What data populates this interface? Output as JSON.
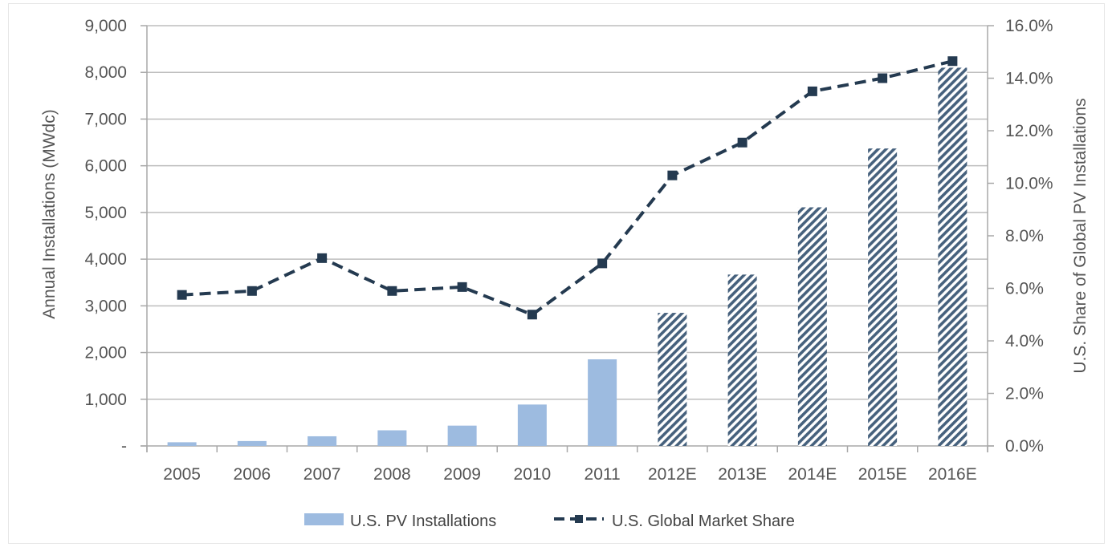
{
  "chart_data": {
    "type": "bar",
    "title": "",
    "categories": [
      "2005",
      "2006",
      "2007",
      "2008",
      "2009",
      "2010",
      "2011",
      "2012E",
      "2013E",
      "2014E",
      "2015E",
      "2016E"
    ],
    "series": [
      {
        "name": "U.S. PV Installations",
        "kind": "bar",
        "axis": "left",
        "values": [
          79,
          105,
          207,
          335,
          435,
          887,
          1855,
          2850,
          3670,
          5110,
          6370,
          8100
        ],
        "estimated_from_index": 7
      },
      {
        "name": "U.S. Global Market Share",
        "kind": "line",
        "axis": "right",
        "values": [
          5.75,
          5.9,
          7.15,
          5.9,
          6.05,
          5.0,
          6.95,
          10.3,
          11.55,
          13.5,
          14.0,
          14.65
        ]
      }
    ],
    "ylabel": "Annual Installations (MWdc)",
    "y2label": "U.S. Share of Global PV Installations",
    "xlabel": "",
    "ylim": [
      0,
      9000
    ],
    "y2lim": [
      0,
      16
    ],
    "yticks": [
      "-",
      "1,000",
      "2,000",
      "3,000",
      "4,000",
      "5,000",
      "6,000",
      "7,000",
      "8,000",
      "9,000"
    ],
    "y2ticks": [
      "0.0%",
      "2.0%",
      "4.0%",
      "6.0%",
      "8.0%",
      "10.0%",
      "12.0%",
      "14.0%",
      "16.0%"
    ],
    "grid": true,
    "legend_position": "bottom",
    "colors": {
      "bar": "#9dbbe0",
      "bar_hatch_background": "#ffffff",
      "bar_hatch_line": "#46617d",
      "line": "#243a50",
      "grid": "#bdbdbd"
    }
  }
}
